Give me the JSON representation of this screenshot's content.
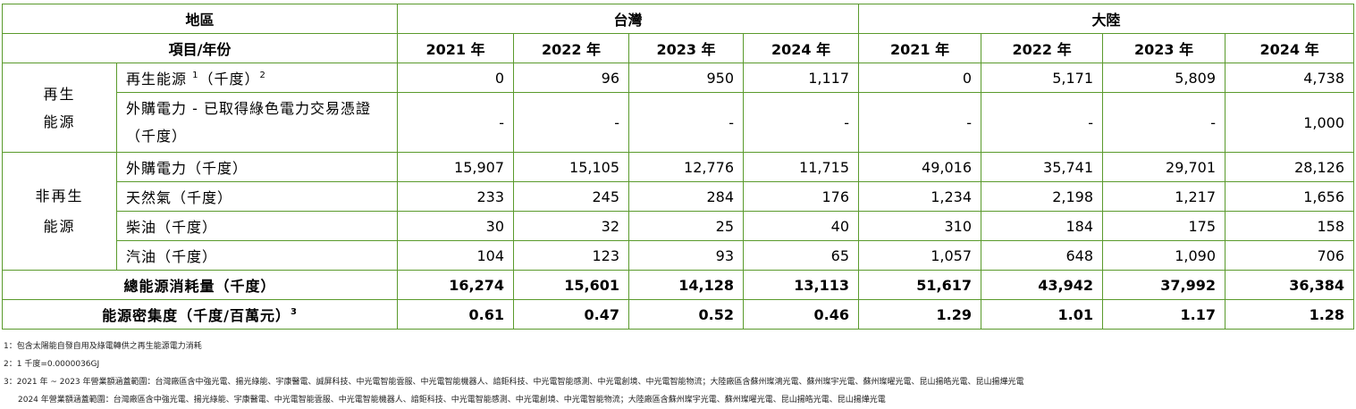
{
  "header": {
    "region_label": "地區",
    "item_year_label": "項目/年份",
    "taiwan": "台灣",
    "mainland": "大陸",
    "years": [
      "2021 年",
      "2022 年",
      "2023 年",
      "2024 年"
    ]
  },
  "categories": {
    "renewable_line1": "再生",
    "renewable_line2": "能源",
    "nonrenewable_line1": "非再生",
    "nonrenewable_line2": "能源"
  },
  "rows": [
    {
      "label": "再生能源",
      "sup1": "1",
      "unit": "（千度）",
      "sup2": "2",
      "values": [
        "0",
        "96",
        "950",
        "1,117",
        "0",
        "5,171",
        "5,809",
        "4,738"
      ]
    },
    {
      "label": "外購電力 - 已取得綠色電力交易憑證（千度）",
      "values": [
        "-",
        "-",
        "-",
        "-",
        "-",
        "-",
        "-",
        "1,000"
      ]
    },
    {
      "label": "外購電力（千度）",
      "values": [
        "15,907",
        "15,105",
        "12,776",
        "11,715",
        "49,016",
        "35,741",
        "29,701",
        "28,126"
      ]
    },
    {
      "label": "天然氣（千度）",
      "values": [
        "233",
        "245",
        "284",
        "176",
        "1,234",
        "2,198",
        "1,217",
        "1,656"
      ]
    },
    {
      "label": "柴油（千度）",
      "values": [
        "30",
        "32",
        "25",
        "40",
        "310",
        "184",
        "175",
        "158"
      ]
    },
    {
      "label": "汽油（千度）",
      "values": [
        "104",
        "123",
        "93",
        "65",
        "1,057",
        "648",
        "1,090",
        "706"
      ]
    }
  ],
  "totals": {
    "label": "總能源消耗量（千度）",
    "values": [
      "16,274",
      "15,601",
      "14,128",
      "13,113",
      "51,617",
      "43,942",
      "37,992",
      "36,384"
    ]
  },
  "intensity": {
    "label": "能源密集度（千度/百萬元）",
    "sup": "3",
    "values": [
      "0.61",
      "0.47",
      "0.52",
      "0.46",
      "1.29",
      "1.01",
      "1.17",
      "1.28"
    ]
  },
  "notes": [
    "1：包含太陽能自發自用及綠電轉供之再生能源電力消耗",
    "2：1 千度=0.0000036GJ",
    "3：2021 年 ~ 2023 年營業額涵蓋範圍：台灣廠區含中強光電、揚光綠能、宇康醫電、誠屏科技、中光電智能雲服、中光電智能機器人、諳鉅科技、中光電智能感測、中光電創境、中光電智能物流；大陸廠區含蘇州璨鴻光電、蘇州璨宇光電、蘇州璨曜光電、昆山揚皓光電、昆山揚燁光電",
    "2024 年營業額涵蓋範圍：台灣廠區含中強光電、揚光綠能、宇康醫電、中光電智能雲服、中光電智能機器人、諳鉅科技、中光電智能感測、中光電創境、中光電智能物流；大陸廠區含蘇州璨宇光電、蘇州璨曜光電、昆山揚皓光電、昆山揚燁光電"
  ]
}
